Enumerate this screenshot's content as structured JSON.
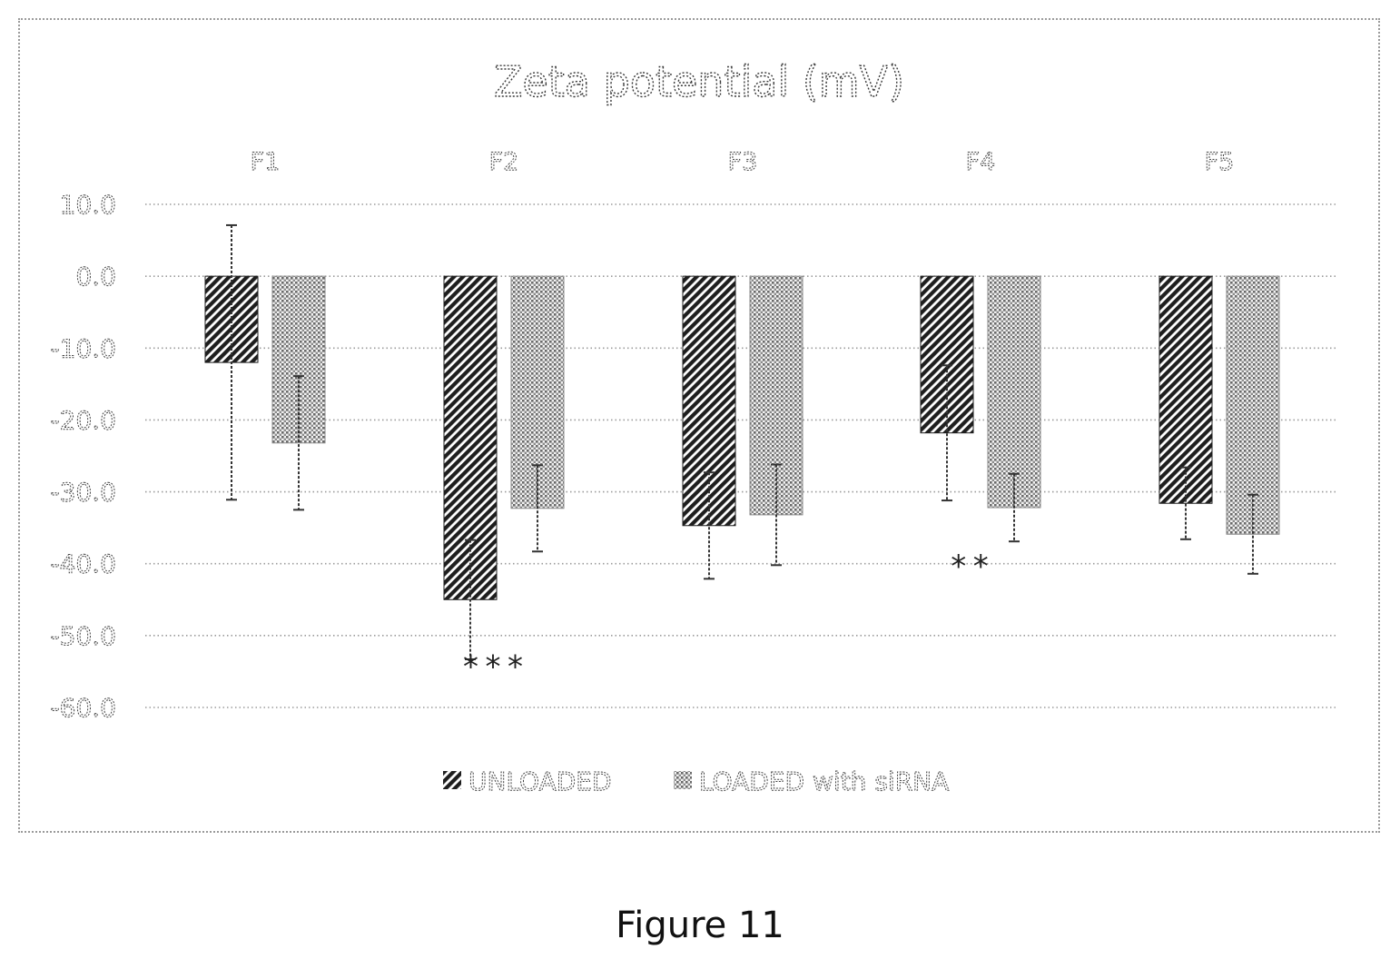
{
  "figure": {
    "caption": "Figure 11"
  },
  "chart_data": {
    "type": "bar",
    "title": "Zeta potential (mV)",
    "xlabel": "",
    "ylabel": "",
    "categories": [
      "F1",
      "F2",
      "F3",
      "F4",
      "F5"
    ],
    "category_axis_position": "top",
    "ylim": [
      -60,
      10
    ],
    "yticks": [
      10,
      0,
      -10,
      -20,
      -30,
      -40,
      -50,
      -60
    ],
    "ytick_labels": [
      "10.0",
      "0.0",
      "-10.0",
      "-20.0",
      "-30.0",
      "-40.0",
      "-50.0",
      "-60.0"
    ],
    "grid": "horizontal-dotted",
    "legend_position": "bottom",
    "series": [
      {
        "name": "UNLOADED",
        "pattern": "dense-diagonal-hatch",
        "color": "#222222",
        "values": [
          -12.0,
          -45.0,
          -34.7,
          -21.8,
          -31.6
        ],
        "error": [
          19.1,
          8.3,
          7.4,
          9.4,
          5.0
        ]
      },
      {
        "name": "LOADED with siRNA",
        "pattern": "light-dot-grid",
        "color": "#555555",
        "values": [
          -23.2,
          -32.3,
          -33.2,
          -32.2,
          -35.9
        ],
        "error": [
          9.3,
          6.0,
          7.0,
          4.7,
          5.5
        ]
      }
    ],
    "annotations": [
      {
        "text": "***",
        "category": "F2",
        "y": -53.5
      },
      {
        "text": "**",
        "category": "F4",
        "y": -39.5
      }
    ]
  }
}
